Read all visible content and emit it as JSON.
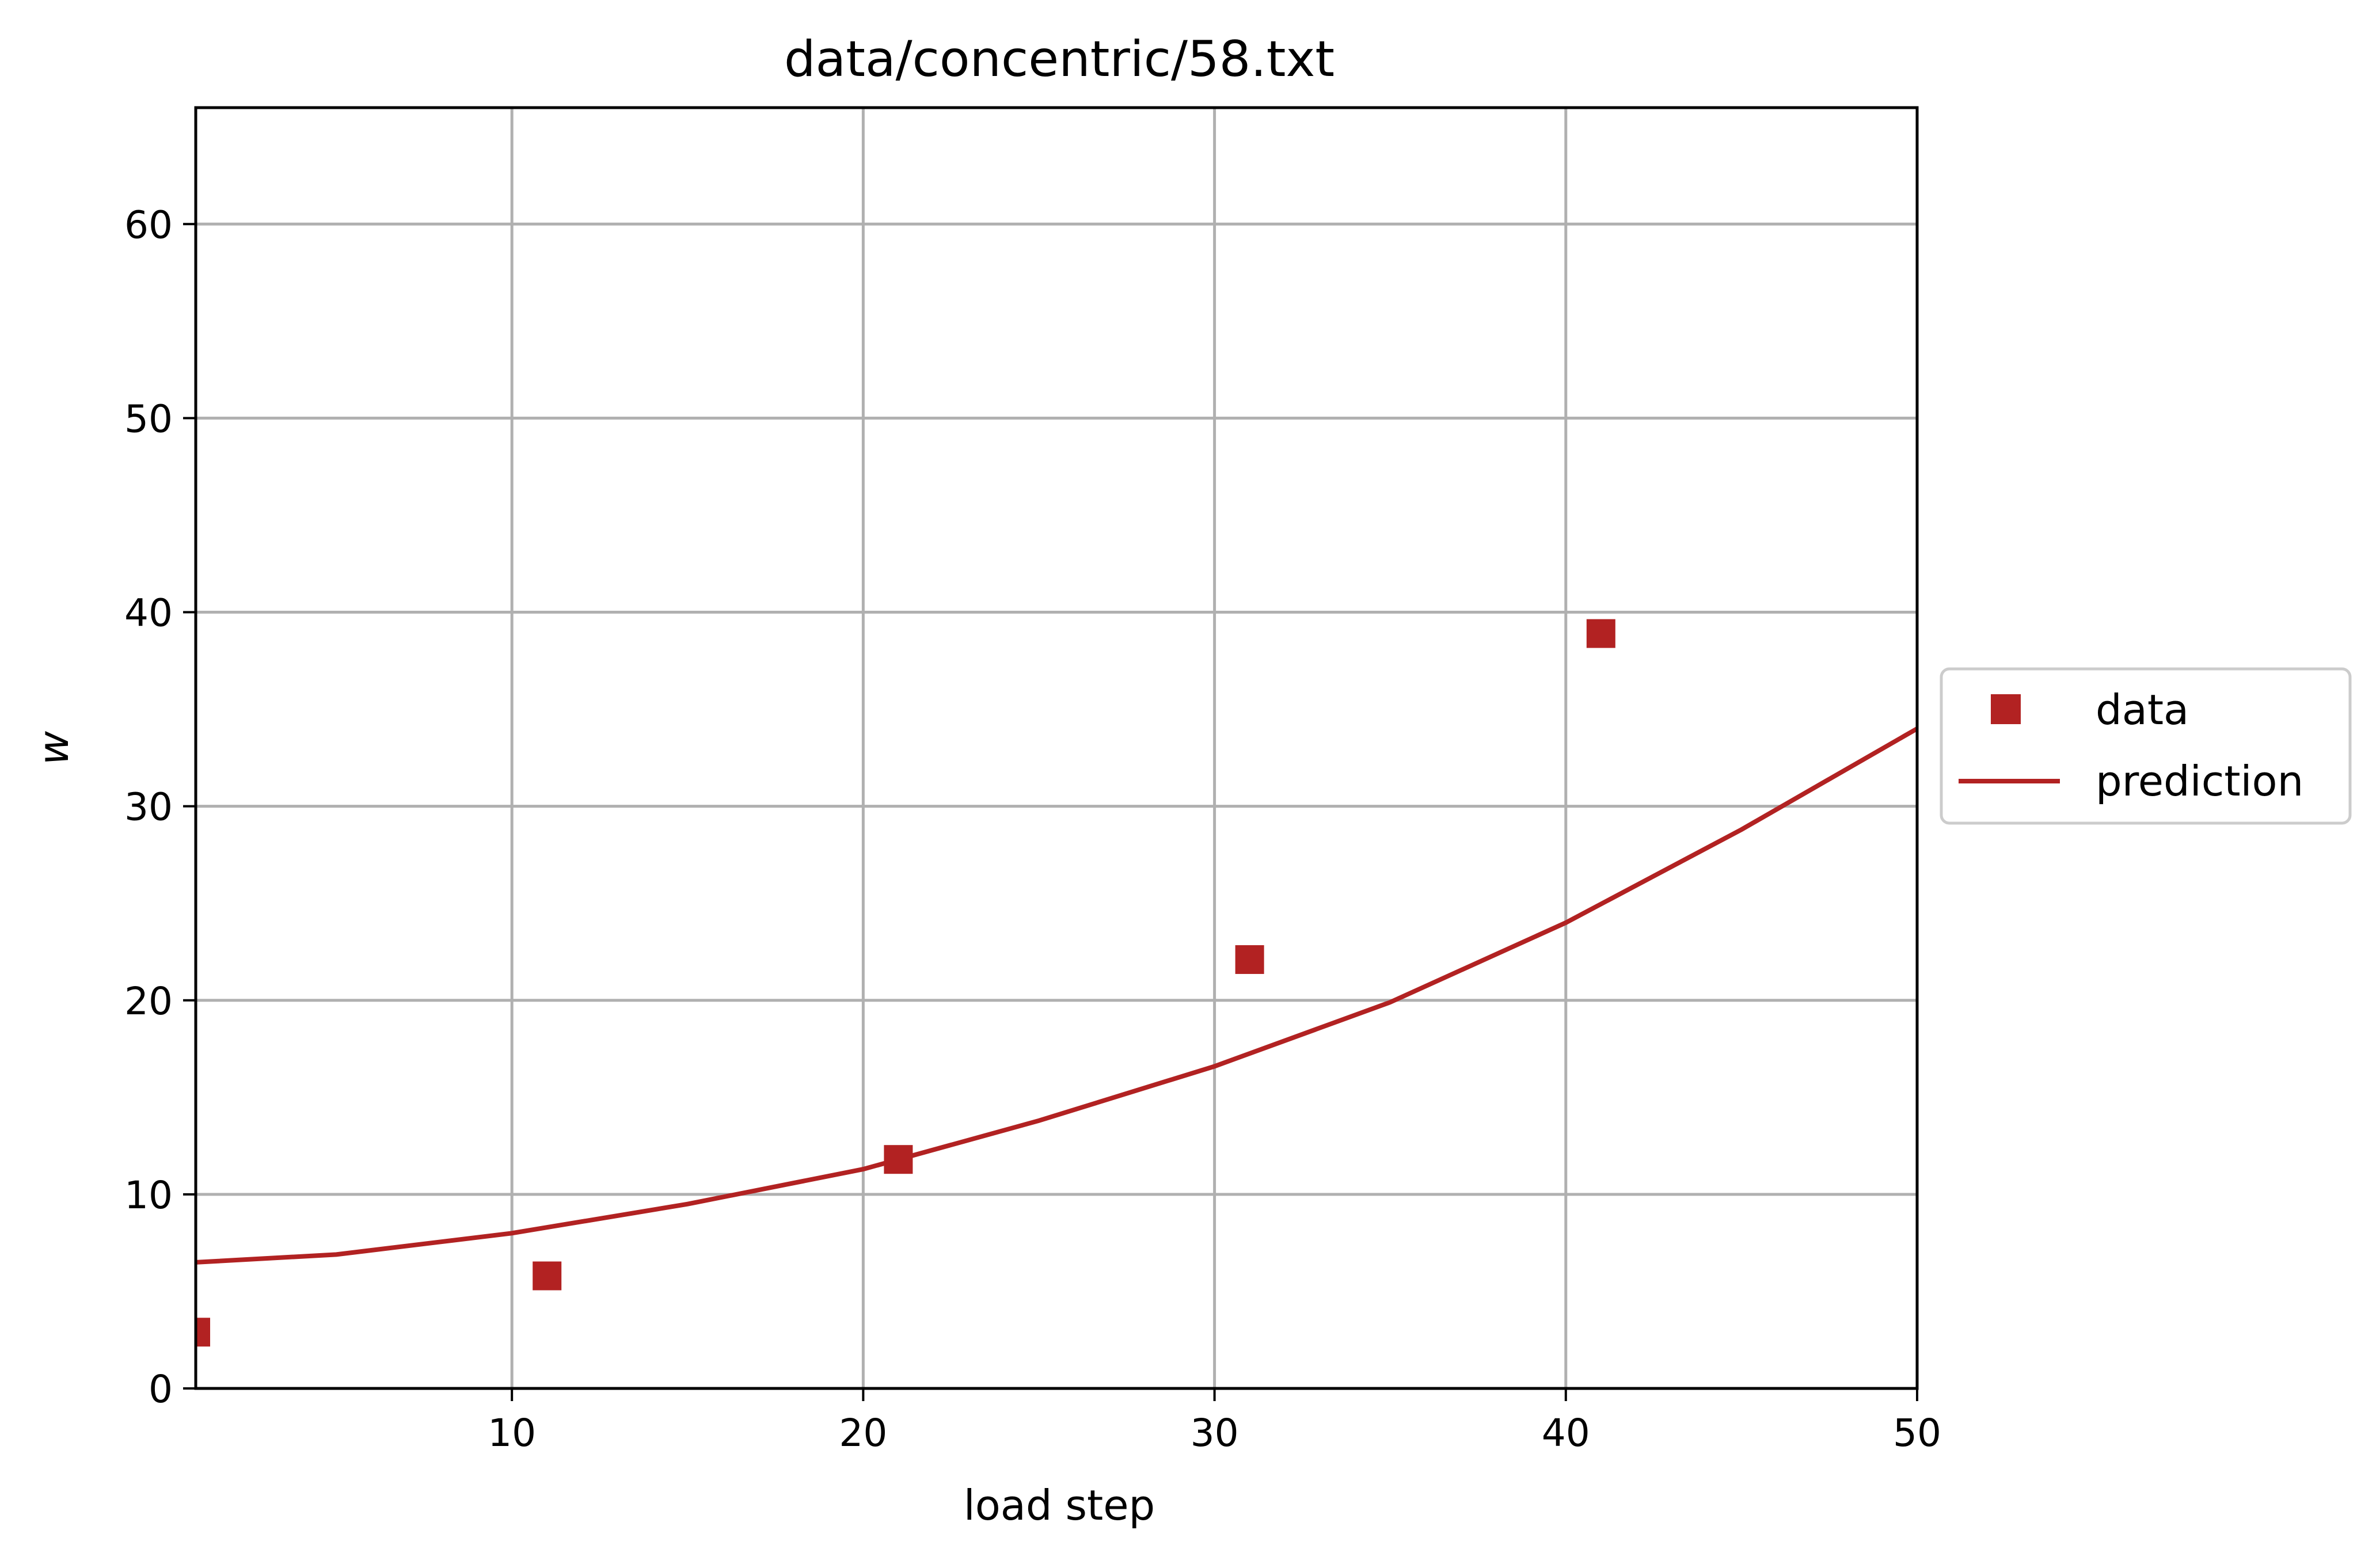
{
  "chart_data": {
    "type": "scatter",
    "title": "data/concentric/58.txt",
    "xlabel": "load step",
    "ylabel": "w",
    "xlim": [
      1,
      50
    ],
    "ylim": [
      0,
      66
    ],
    "xticks": [
      10,
      20,
      30,
      40,
      50
    ],
    "xtick_labels": [
      "10",
      "20",
      "30",
      "40",
      "50"
    ],
    "yticks": [
      0,
      10,
      20,
      30,
      40,
      50,
      60
    ],
    "ytick_labels": [
      "0",
      "10",
      "20",
      "30",
      "40",
      "50",
      "60"
    ],
    "grid": true,
    "legend_position": "right-outside-center",
    "color": "#b22222",
    "series": [
      {
        "name": "data",
        "kind": "markers",
        "marker": "square",
        "x": [
          1,
          11,
          21,
          31,
          41
        ],
        "y": [
          2.9,
          5.8,
          11.8,
          22.1,
          38.9
        ]
      },
      {
        "name": "prediction",
        "kind": "line",
        "x": [
          1,
          5,
          10,
          15,
          20,
          25,
          30,
          35,
          40,
          45,
          50
        ],
        "y": [
          6.5,
          6.9,
          8.0,
          9.5,
          11.3,
          13.8,
          16.6,
          19.9,
          24.0,
          28.8,
          34.0
        ]
      }
    ]
  }
}
